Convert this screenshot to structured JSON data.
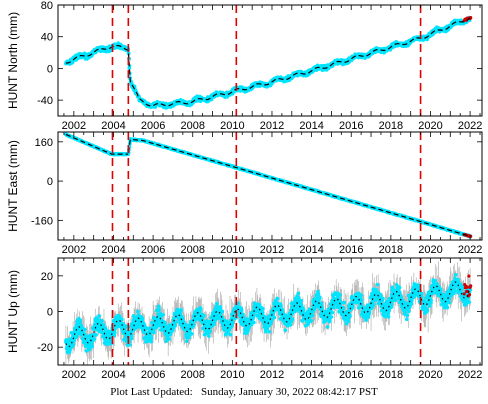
{
  "footer": {
    "label": "Plot Last Updated:",
    "value": "Sunday, January 30, 2022 08:42:17 PST"
  },
  "colors": {
    "data_fill": "#00E5FF",
    "model_line": "#000000",
    "event_line": "#E00000",
    "recent_points": "#D00000",
    "error_bars": "#A8A8A8"
  },
  "chart_data": [
    {
      "type": "scatter",
      "station": "HUNT",
      "component": "North",
      "ylabel": "HUNT North (mm)",
      "xlim": [
        2001.2,
        2022.6
      ],
      "ylim": [
        -60,
        80
      ],
      "xticks": [
        2002,
        2004,
        2006,
        2008,
        2010,
        2012,
        2014,
        2016,
        2018,
        2020,
        2022
      ],
      "yticks": [
        -40,
        0,
        40,
        80
      ],
      "event_lines": [
        2003.95,
        2004.75,
        2010.2,
        2019.5
      ],
      "trend_points": [
        [
          2001.6,
          8
        ],
        [
          2003.9,
          28
        ],
        [
          2004.75,
          25
        ],
        [
          2004.85,
          -15
        ],
        [
          2005.3,
          -40
        ],
        [
          2006.0,
          -47
        ],
        [
          2008.0,
          -42
        ],
        [
          2010.2,
          -28
        ],
        [
          2012.0,
          -17
        ],
        [
          2014.0,
          -3
        ],
        [
          2016.0,
          12
        ],
        [
          2018.0,
          27
        ],
        [
          2019.5,
          38
        ],
        [
          2022.0,
          64
        ]
      ],
      "seasonal_amplitude": 2,
      "band_halfwidth": 4,
      "error_bars": false
    },
    {
      "type": "scatter",
      "station": "HUNT",
      "component": "East",
      "ylabel": "HUNT East (mm)",
      "xlim": [
        2001.2,
        2022.6
      ],
      "ylim": [
        -240,
        200
      ],
      "xticks": [
        2002,
        2004,
        2006,
        2008,
        2010,
        2012,
        2014,
        2016,
        2018,
        2020,
        2022
      ],
      "yticks": [
        -160,
        0,
        160
      ],
      "event_lines": [
        2003.95,
        2004.75,
        2010.2,
        2019.5
      ],
      "trend_points": [
        [
          2001.6,
          190
        ],
        [
          2003.9,
          110
        ],
        [
          2004.75,
          110
        ],
        [
          2004.85,
          170
        ],
        [
          2005.5,
          165
        ],
        [
          2010.2,
          55
        ],
        [
          2019.5,
          -165
        ],
        [
          2022.0,
          -225
        ]
      ],
      "seasonal_amplitude": 0,
      "band_halfwidth": 3,
      "error_bars": false
    },
    {
      "type": "scatter",
      "station": "HUNT",
      "component": "Up",
      "ylabel": "HUNT Up (mm)",
      "xlim": [
        2001.2,
        2022.6
      ],
      "ylim": [
        -30,
        30
      ],
      "xticks": [
        2002,
        2004,
        2006,
        2008,
        2010,
        2012,
        2014,
        2016,
        2018,
        2020,
        2022
      ],
      "yticks": [
        -20,
        0,
        20
      ],
      "event_lines": [
        2003.95,
        2004.75,
        2010.2,
        2019.5
      ],
      "trend_points": [
        [
          2001.6,
          -15
        ],
        [
          2004.0,
          -10
        ],
        [
          2010.0,
          -4
        ],
        [
          2016.0,
          3
        ],
        [
          2019.5,
          8
        ],
        [
          2022.0,
          13
        ]
      ],
      "seasonal_amplitude": 5,
      "band_halfwidth": 7,
      "error_bars": true
    }
  ]
}
